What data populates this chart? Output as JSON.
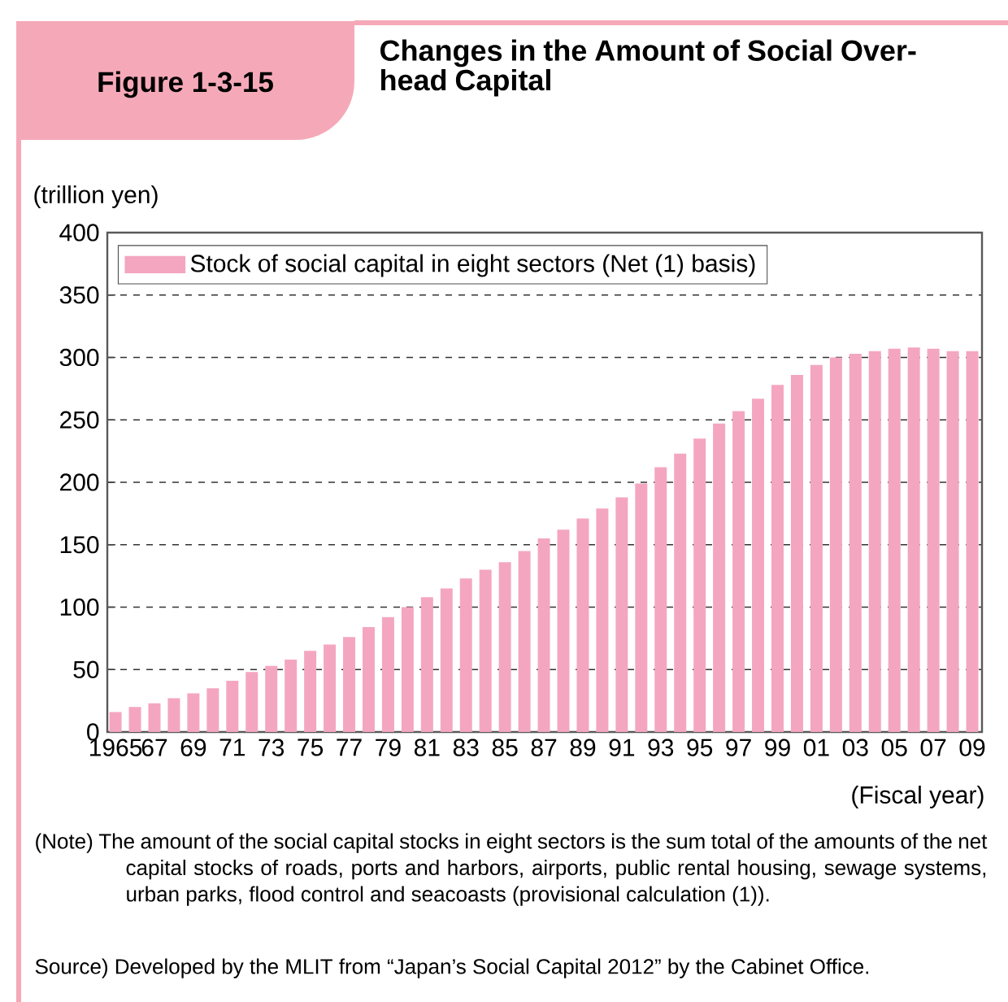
{
  "chart_data": {
    "type": "bar",
    "title": "Changes in the Amount of Social Over-head Capital",
    "ylabel": "(trillion yen)",
    "xlabel": "(Fiscal year)",
    "annotations": [
      "Figure 1-3-15",
      "(Note) The amount of the social capital stocks in eight sectors is the sum total of the amounts of the net capital stocks of roads, ports and harbors, airports, public rental housing, sewage systems, urban parks, flood control and seacoasts (provisional calculation (1)).",
      "Source) Developed by the MLIT from “Japan’s Social Capital 2012” by the Cabinet Office."
    ],
    "categories": [
      "1965",
      null,
      "67",
      null,
      "69",
      null,
      "71",
      null,
      "73",
      null,
      "75",
      null,
      "77",
      null,
      "79",
      null,
      "81",
      null,
      "83",
      null,
      "85",
      null,
      "87",
      null,
      "89",
      null,
      "91",
      null,
      "93",
      null,
      "95",
      null,
      "97",
      null,
      "99",
      null,
      "01",
      null,
      "03",
      null,
      "05",
      null,
      "07",
      null,
      "09"
    ],
    "series": [
      {
        "name": "Stock of social capital in eight sectors (Net (1) basis)",
        "color": "#f4a6c0",
        "values": [
          16,
          20,
          23,
          27,
          31,
          35,
          41,
          48,
          53,
          58,
          65,
          70,
          76,
          84,
          92,
          100,
          108,
          115,
          123,
          130,
          136,
          145,
          155,
          162,
          171,
          179,
          188,
          199,
          212,
          223,
          235,
          247,
          257,
          267,
          278,
          286,
          294,
          300,
          303,
          305,
          307,
          308,
          307,
          305,
          305
        ]
      }
    ],
    "ylim": [
      0,
      400
    ],
    "yticks": [
      0,
      50,
      100,
      150,
      200,
      250,
      300,
      350,
      400
    ],
    "grid": "y",
    "legend": "top left"
  }
}
